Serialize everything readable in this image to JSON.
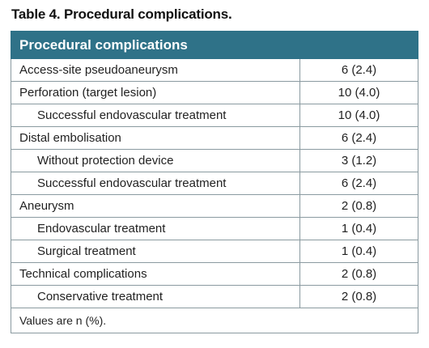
{
  "caption": "Table 4. Procedural complications.",
  "header": "Procedural complications",
  "rows": [
    {
      "label": "Access-site pseudoaneurysm",
      "value": "6 (2.4)",
      "indent": false
    },
    {
      "label": "Perforation (target lesion)",
      "value": "10 (4.0)",
      "indent": false
    },
    {
      "label": "Successful endovascular treatment",
      "value": "10 (4.0)",
      "indent": true
    },
    {
      "label": "Distal embolisation",
      "value": "6 (2.4)",
      "indent": false
    },
    {
      "label": "Without protection device",
      "value": "3 (1.2)",
      "indent": true
    },
    {
      "label": "Successful endovascular treatment",
      "value": "6 (2.4)",
      "indent": true
    },
    {
      "label": "Aneurysm",
      "value": "2 (0.8)",
      "indent": false
    },
    {
      "label": "Endovascular treatment",
      "value": "1 (0.4)",
      "indent": true
    },
    {
      "label": "Surgical treatment",
      "value": "1 (0.4)",
      "indent": true
    },
    {
      "label": "Technical complications",
      "value": "2 (0.8)",
      "indent": false
    },
    {
      "label": "Conservative treatment",
      "value": "2 (0.8)",
      "indent": true
    }
  ],
  "footnote": "Values are n (%)."
}
